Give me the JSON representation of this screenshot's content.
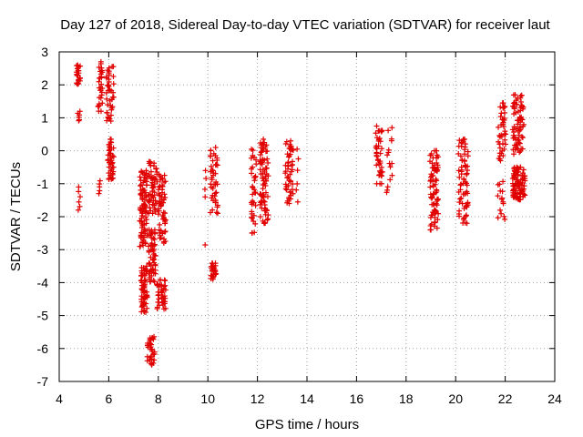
{
  "chart_data": {
    "type": "scatter",
    "title": "Day 127 of 2018, Sidereal Day-to-day VTEC variation (SDTVAR) for receiver laut",
    "xlabel": "GPS time / hours",
    "ylabel": "SDTVAR / TECUs",
    "xlim": [
      4,
      24
    ],
    "ylim": [
      -7,
      3
    ],
    "xticks": [
      4,
      6,
      8,
      10,
      12,
      14,
      16,
      18,
      20,
      22,
      24
    ],
    "yticks": [
      -7,
      -6,
      -5,
      -4,
      -3,
      -2,
      -1,
      0,
      1,
      2,
      3
    ],
    "grid": true,
    "marker": "+",
    "marker_color": "#e00000",
    "series": [
      {
        "name": "SDTVAR",
        "clusters": [
          {
            "x": [
              4.7,
              4.85
            ],
            "y_min": 2.0,
            "y_max": 2.6,
            "count": 22
          },
          {
            "x": [
              4.75,
              4.85
            ],
            "y_min": 0.9,
            "y_max": 1.2,
            "count": 6
          },
          {
            "x": [
              4.75,
              4.85
            ],
            "y_min": -1.8,
            "y_max": -1.1,
            "count": 6
          },
          {
            "x": [
              5.55,
              5.75
            ],
            "y_min": 1.2,
            "y_max": 2.7,
            "count": 30
          },
          {
            "x": [
              5.6,
              5.7
            ],
            "y_min": -1.3,
            "y_max": -0.9,
            "count": 5
          },
          {
            "x": [
              5.9,
              6.2
            ],
            "y_min": 0.9,
            "y_max": 2.6,
            "count": 40
          },
          {
            "x": [
              5.95,
              6.2
            ],
            "y_min": -0.9,
            "y_max": 0.35,
            "count": 45
          },
          {
            "x": [
              7.25,
              7.55
            ],
            "y_min": -2.9,
            "y_max": -0.6,
            "count": 90
          },
          {
            "x": [
              7.3,
              7.55
            ],
            "y_min": -4.9,
            "y_max": -3.5,
            "count": 60
          },
          {
            "x": [
              7.6,
              7.95
            ],
            "y_min": -1.9,
            "y_max": -0.3,
            "count": 50
          },
          {
            "x": [
              7.6,
              7.9
            ],
            "y_min": -4.0,
            "y_max": -2.4,
            "count": 55
          },
          {
            "x": [
              7.55,
              7.85
            ],
            "y_min": -6.5,
            "y_max": -5.6,
            "count": 35
          },
          {
            "x": [
              8.0,
              8.3
            ],
            "y_min": -2.8,
            "y_max": -0.7,
            "count": 60
          },
          {
            "x": [
              7.95,
              8.3
            ],
            "y_min": -4.8,
            "y_max": -3.9,
            "count": 40
          },
          {
            "x": [
              9.85,
              9.95
            ],
            "y_min": -1.4,
            "y_max": -0.6,
            "count": 4
          },
          {
            "x": [
              9.85,
              9.9
            ],
            "y_min": -2.9,
            "y_max": -2.8,
            "count": 1
          },
          {
            "x": [
              10.1,
              10.4
            ],
            "y_min": -1.9,
            "y_max": 0.1,
            "count": 45
          },
          {
            "x": [
              10.1,
              10.35
            ],
            "y_min": -3.9,
            "y_max": -3.4,
            "count": 25
          },
          {
            "x": [
              11.75,
              11.95
            ],
            "y_min": -2.5,
            "y_max": 0.1,
            "count": 35
          },
          {
            "x": [
              12.1,
              12.45
            ],
            "y_min": -2.2,
            "y_max": 0.35,
            "count": 80
          },
          {
            "x": [
              13.1,
              13.45
            ],
            "y_min": -1.6,
            "y_max": 0.3,
            "count": 50
          },
          {
            "x": [
              13.5,
              13.7
            ],
            "y_min": -1.6,
            "y_max": 0.05,
            "count": 6
          },
          {
            "x": [
              16.75,
              17.05
            ],
            "y_min": -1.0,
            "y_max": 0.75,
            "count": 40
          },
          {
            "x": [
              17.2,
              17.45
            ],
            "y_min": -1.3,
            "y_max": 0.7,
            "count": 15
          },
          {
            "x": [
              18.95,
              19.3
            ],
            "y_min": -2.4,
            "y_max": 0.0,
            "count": 75
          },
          {
            "x": [
              20.1,
              20.5
            ],
            "y_min": -2.2,
            "y_max": 0.35,
            "count": 70
          },
          {
            "x": [
              21.7,
              22.0
            ],
            "y_min": -2.1,
            "y_max": -0.9,
            "count": 15
          },
          {
            "x": [
              21.7,
              22.05
            ],
            "y_min": -0.3,
            "y_max": 1.45,
            "count": 40
          },
          {
            "x": [
              22.3,
              22.8
            ],
            "y_min": -1.5,
            "y_max": -0.5,
            "count": 90
          },
          {
            "x": [
              22.3,
              22.75
            ],
            "y_min": -0.1,
            "y_max": 1.7,
            "count": 70
          }
        ]
      }
    ]
  }
}
